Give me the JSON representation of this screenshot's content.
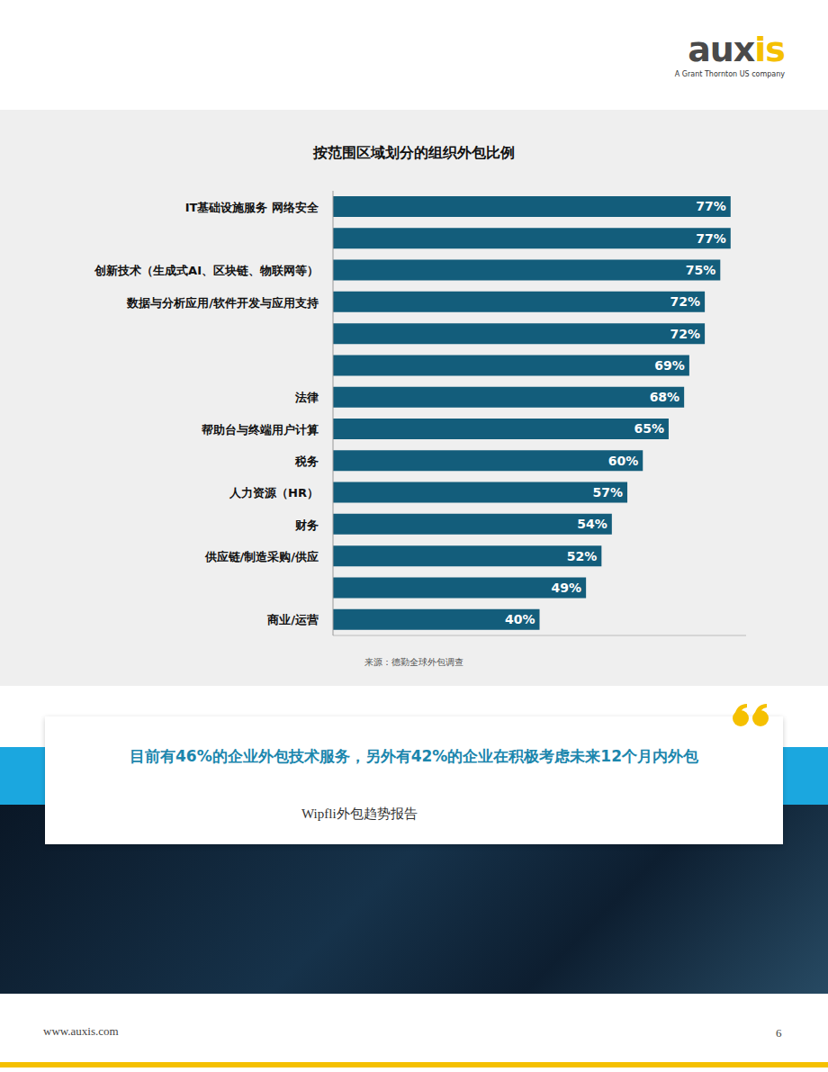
{
  "chart_data": {
    "type": "bar",
    "title": "按范围区域划分的组织外包比例",
    "orientation": "horizontal",
    "categories": [
      "IT基础设施服务 网络安全",
      null,
      "创新技术（生成式AI、区块链、物联网等）",
      "数据与分析应用/软件开发与应用支持",
      null,
      null,
      "法律",
      "帮助台与终端用户计算",
      "税务",
      "人力资源（HR）",
      "财务",
      "供应链/制造采购/供应",
      null,
      "商业/运营"
    ],
    "values": [
      77,
      77,
      75,
      72,
      72,
      69,
      68,
      65,
      60,
      57,
      54,
      52,
      49,
      40
    ],
    "value_labels": [
      "77%",
      "77%",
      "75%",
      "72%",
      "72%",
      "69%",
      "68%",
      "65%",
      "60%",
      "57%",
      "54%",
      "52%",
      "49%",
      "40%"
    ],
    "data_labels": true,
    "color": "#135d7b",
    "xlim": [
      0,
      80
    ],
    "tick_labels": "y",
    "grid": false,
    "annotations": [
      "来源：德勤全球外包调查",
      "目前有46%的企业外包技术服务，另外有42%的企业在积极考虑未来12个月内外包",
      "Wipfli外包趋势报告",
      "www.auxis.com",
      "6",
      "auxis",
      "A Grant Thornton US company"
    ]
  }
}
